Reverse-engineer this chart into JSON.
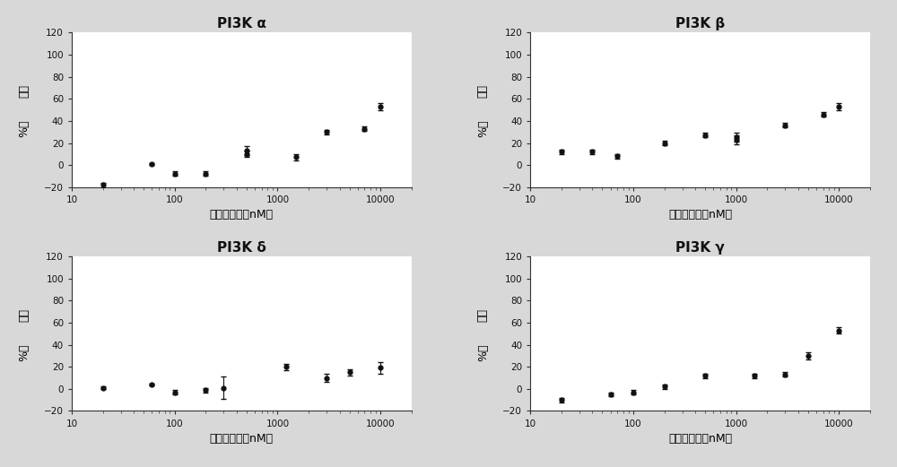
{
  "panels": [
    {
      "title": "PI3K α",
      "x": [
        20,
        60,
        100,
        200,
        500,
        500,
        1500,
        3000,
        7000,
        10000
      ],
      "y": [
        -18,
        1,
        -8,
        -8,
        13,
        10,
        7,
        30,
        33,
        53
      ],
      "yerr": [
        2,
        1,
        2,
        2,
        4,
        3,
        3,
        2,
        2,
        3
      ]
    },
    {
      "title": "PI3K β",
      "x": [
        20,
        40,
        70,
        200,
        500,
        1000,
        1000,
        3000,
        7000,
        10000
      ],
      "y": [
        12,
        12,
        8,
        20,
        27,
        23,
        25,
        36,
        46,
        53
      ],
      "yerr": [
        2,
        2,
        2,
        2,
        2,
        4,
        4,
        2,
        2,
        3
      ]
    },
    {
      "title": "PI3K δ",
      "x": [
        20,
        60,
        100,
        200,
        300,
        1200,
        3000,
        5000,
        10000
      ],
      "y": [
        1,
        4,
        -3,
        -1,
        1,
        20,
        10,
        15,
        19
      ],
      "yerr": [
        1,
        1,
        2,
        2,
        10,
        3,
        4,
        3,
        5
      ]
    },
    {
      "title": "PI3K γ",
      "x": [
        20,
        60,
        100,
        200,
        500,
        1500,
        3000,
        5000,
        10000
      ],
      "y": [
        -10,
        -5,
        -3,
        2,
        12,
        12,
        13,
        30,
        53
      ],
      "yerr": [
        2,
        2,
        2,
        2,
        2,
        2,
        2,
        3,
        3
      ]
    }
  ],
  "xlabel": "化合物浓度（nM）",
  "ylabel_line1": "抑制",
  "ylabel_line2": "%率",
  "ylim": [
    -20,
    120
  ],
  "yticks": [
    -20,
    0,
    20,
    40,
    60,
    80,
    100,
    120
  ],
  "xlim": [
    10,
    20000
  ],
  "background_color": "#d8d8d8",
  "plot_bg_color": "#ffffff",
  "dot_color": "#111111",
  "curve_color": "#777777"
}
